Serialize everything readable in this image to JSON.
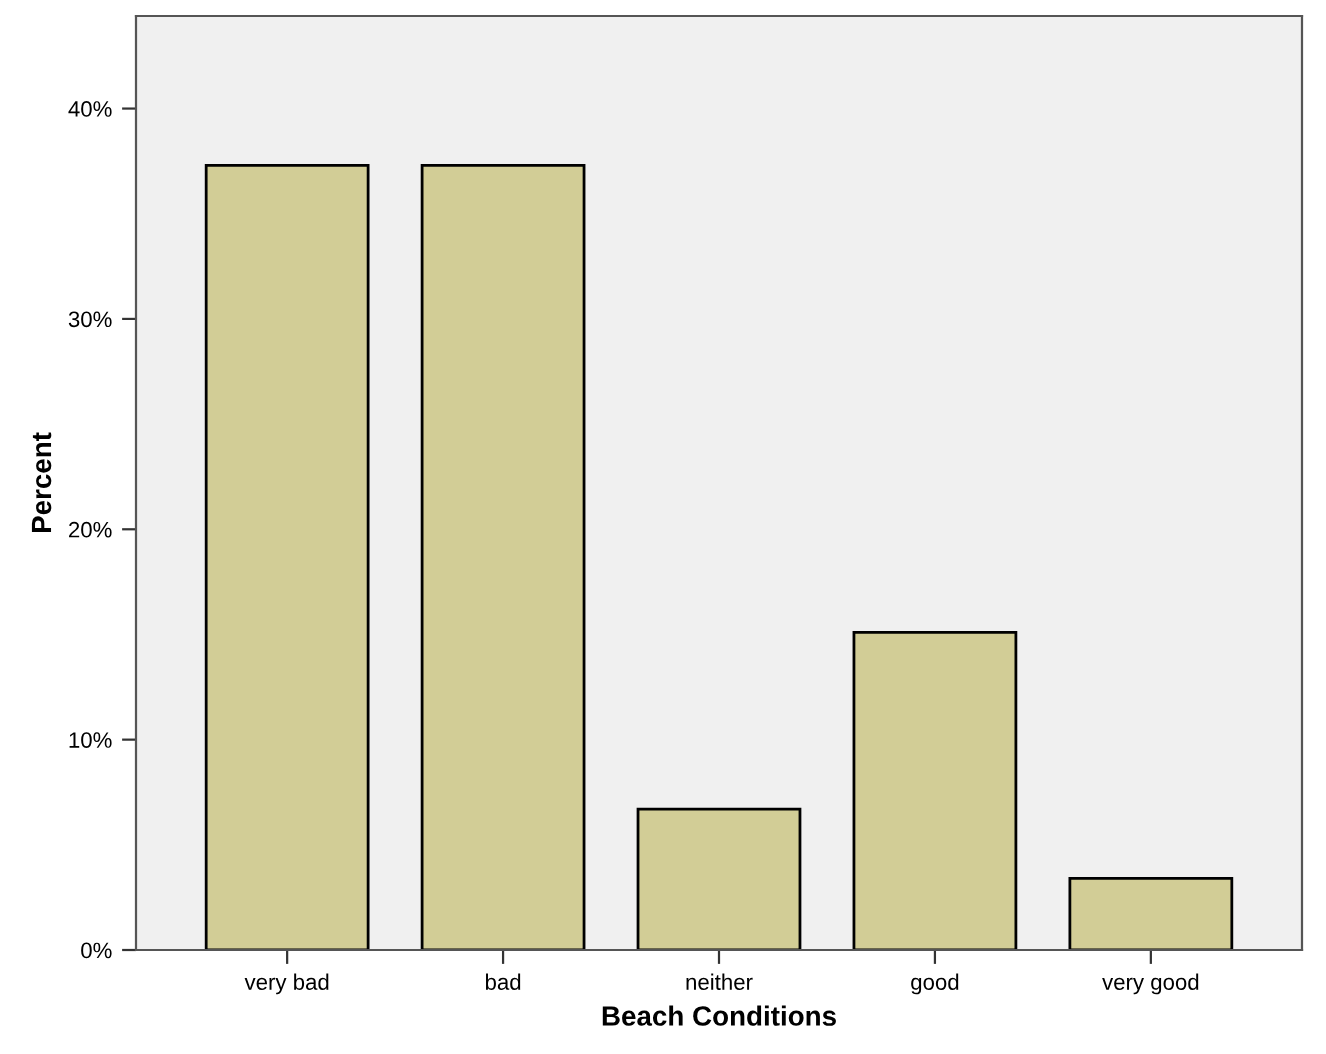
{
  "chart_data": {
    "type": "bar",
    "xlabel": "Beach Conditions",
    "ylabel": "Percent",
    "categories": [
      "very bad",
      "bad",
      "neither",
      "good",
      "very good"
    ],
    "values": [
      37.3,
      37.3,
      6.7,
      15.1,
      3.4
    ],
    "color": "#d2cd96",
    "ylim": [
      0,
      44.4
    ],
    "yticks": [
      {
        "value": 0,
        "label": "0%"
      },
      {
        "value": 10,
        "label": "10%"
      },
      {
        "value": 20,
        "label": "20%"
      },
      {
        "value": 30,
        "label": "30%"
      },
      {
        "value": 40,
        "label": "40%"
      }
    ],
    "grid": false,
    "legend": false
  }
}
